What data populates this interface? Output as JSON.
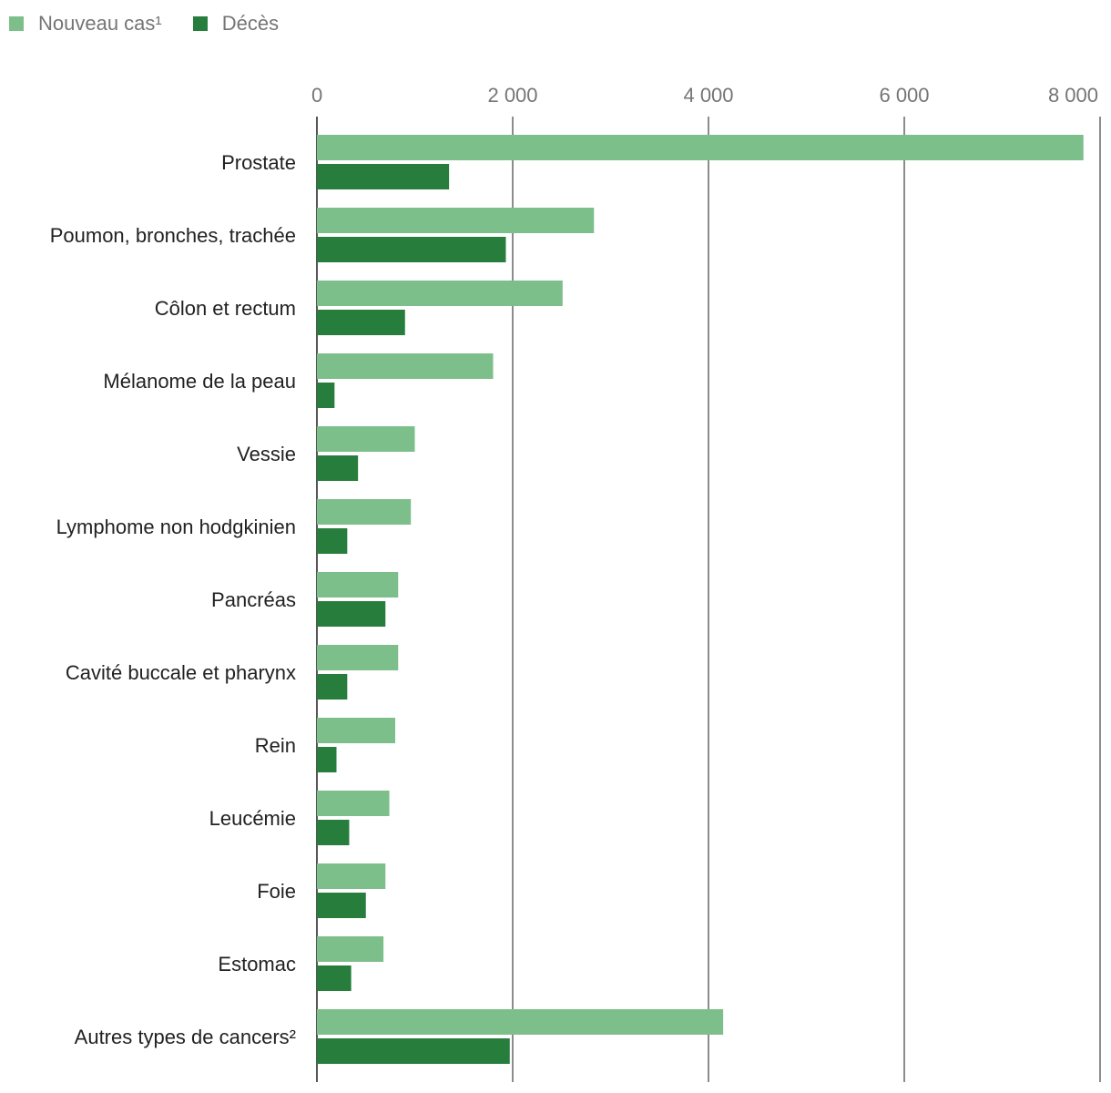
{
  "legend": {
    "items": [
      {
        "label": "Nouveau cas¹",
        "color": "#7dbf8a"
      },
      {
        "label": "Décès",
        "color": "#267d3c"
      }
    ]
  },
  "chart_data": {
    "type": "bar",
    "orientation": "horizontal",
    "categories": [
      "Prostate",
      "Poumon, bronches, trachée",
      "Côlon et rectum",
      "Mélanome de la peau",
      "Vessie",
      "Lymphome non hodgkinien",
      "Pancréas",
      "Cavité buccale et pharynx",
      "Rein",
      "Leucémie",
      "Foie",
      "Estomac",
      "Autres types de cancers²"
    ],
    "series": [
      {
        "name": "Nouveau cas¹",
        "color": "#7dbf8a",
        "values": [
          7830,
          2830,
          2510,
          1800,
          1000,
          960,
          830,
          830,
          800,
          740,
          700,
          680,
          4150
        ]
      },
      {
        "name": "Décès",
        "color": "#267d3c",
        "values": [
          1350,
          1930,
          900,
          180,
          420,
          310,
          700,
          310,
          200,
          330,
          500,
          350,
          1970
        ]
      }
    ],
    "xticks": [
      "0",
      "2 000",
      "4 000",
      "6 000",
      "8 000"
    ],
    "xtick_values": [
      0,
      2000,
      4000,
      6000,
      8000
    ],
    "xlim": [
      0,
      8000
    ],
    "legend_position": "top-left",
    "grid": true
  }
}
